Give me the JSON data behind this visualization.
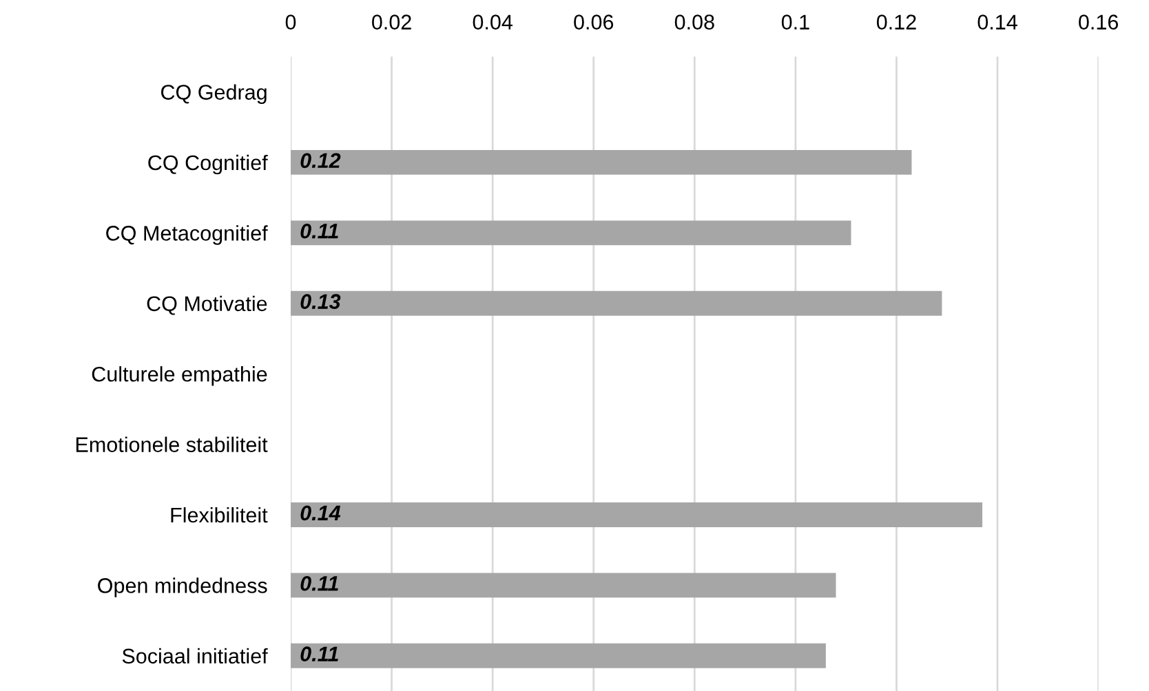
{
  "chart_data": {
    "type": "bar",
    "orientation": "horizontal",
    "categories": [
      "CQ Gedrag",
      "CQ Cognitief",
      "CQ Metacognitief",
      "CQ Motivatie",
      "Culturele empathie",
      "Emotionele stabiliteit",
      "Flexibiliteit",
      "Open mindedness",
      "Sociaal initiatief"
    ],
    "series": [
      {
        "color": "#a6a6a6",
        "values": [
          null,
          0.123,
          0.111,
          0.129,
          null,
          null,
          0.137,
          0.108,
          0.106
        ],
        "value_labels": [
          null,
          "0.12",
          "0.11",
          "0.13",
          null,
          null,
          "0.14",
          "0.11",
          "0.11"
        ]
      }
    ],
    "xlim": [
      0,
      0.16
    ],
    "xticks": [
      0,
      0.02,
      0.04,
      0.06,
      0.08,
      0.1,
      0.12,
      0.14,
      0.16
    ],
    "grid": "x",
    "legend": false
  }
}
